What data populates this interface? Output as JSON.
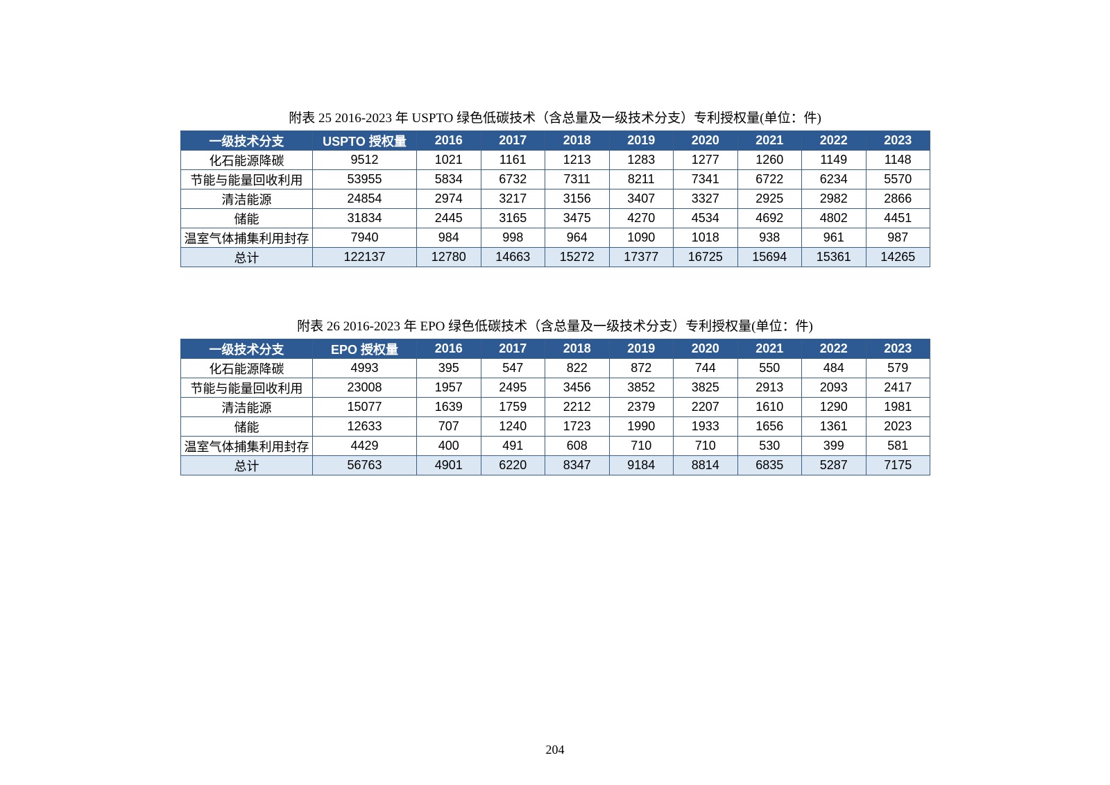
{
  "page_number": "204",
  "styling": {
    "page_bg": "#ffffff",
    "header_bg": "#2e5a94",
    "header_fg": "#ffffff",
    "border_color": "#3b5d8a",
    "row_bg": "#ffffff",
    "total_row_bg": "#dbe7f3",
    "caption_fontsize": 19,
    "cell_fontsize": 18,
    "col_widths": {
      "branch": 190,
      "total": 150,
      "year": 92.5
    }
  },
  "table1": {
    "type": "table",
    "caption": "附表 25 2016-2023 年 USPTO 绿色低碳技术（含总量及一级技术分支）专利授权量(单位：件)",
    "headers": [
      "一级技术分支",
      "USPTO 授权量",
      "2016",
      "2017",
      "2018",
      "2019",
      "2020",
      "2021",
      "2022",
      "2023"
    ],
    "rows": [
      [
        "化石能源降碳",
        "9512",
        "1021",
        "1161",
        "1213",
        "1283",
        "1277",
        "1260",
        "1149",
        "1148"
      ],
      [
        "节能与能量回收利用",
        "53955",
        "5834",
        "6732",
        "7311",
        "8211",
        "7341",
        "6722",
        "6234",
        "5570"
      ],
      [
        "清洁能源",
        "24854",
        "2974",
        "3217",
        "3156",
        "3407",
        "3327",
        "2925",
        "2982",
        "2866"
      ],
      [
        "储能",
        "31834",
        "2445",
        "3165",
        "3475",
        "4270",
        "4534",
        "4692",
        "4802",
        "4451"
      ],
      [
        "温室气体捕集利用封存",
        "7940",
        "984",
        "998",
        "964",
        "1090",
        "1018",
        "938",
        "961",
        "987"
      ]
    ],
    "total_row": [
      "总计",
      "122137",
      "12780",
      "14663",
      "15272",
      "17377",
      "16725",
      "15694",
      "15361",
      "14265"
    ]
  },
  "table2": {
    "type": "table",
    "caption": "附表 26 2016-2023 年 EPO 绿色低碳技术（含总量及一级技术分支）专利授权量(单位：件)",
    "headers": [
      "一级技术分支",
      "EPO 授权量",
      "2016",
      "2017",
      "2018",
      "2019",
      "2020",
      "2021",
      "2022",
      "2023"
    ],
    "rows": [
      [
        "化石能源降碳",
        "4993",
        "395",
        "547",
        "822",
        "872",
        "744",
        "550",
        "484",
        "579"
      ],
      [
        "节能与能量回收利用",
        "23008",
        "1957",
        "2495",
        "3456",
        "3852",
        "3825",
        "2913",
        "2093",
        "2417"
      ],
      [
        "清洁能源",
        "15077",
        "1639",
        "1759",
        "2212",
        "2379",
        "2207",
        "1610",
        "1290",
        "1981"
      ],
      [
        "储能",
        "12633",
        "707",
        "1240",
        "1723",
        "1990",
        "1933",
        "1656",
        "1361",
        "2023"
      ],
      [
        "温室气体捕集利用封存",
        "4429",
        "400",
        "491",
        "608",
        "710",
        "710",
        "530",
        "399",
        "581"
      ]
    ],
    "total_row": [
      "总计",
      "56763",
      "4901",
      "6220",
      "8347",
      "9184",
      "8814",
      "6835",
      "5287",
      "7175"
    ]
  }
}
